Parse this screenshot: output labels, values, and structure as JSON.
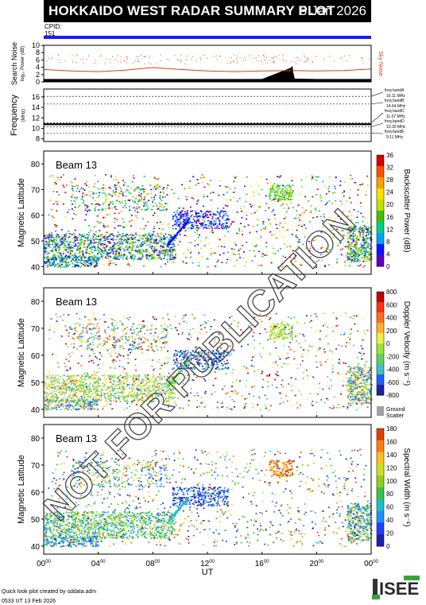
{
  "header": {
    "title": "HOKKAIDO WEST RADAR SUMMARY PLOT",
    "date": "5 Jan 2026"
  },
  "cpid": {
    "label": "CPID:",
    "value": "151"
  },
  "footer": {
    "line1": "Quick look plot created by sddata.adm",
    "line2": "0533 UT 13 Feb 2026"
  },
  "logo": {
    "text": "ISEE"
  },
  "watermark": "NOT FOR PUBLICATION",
  "colors": {
    "cpid_bar": "#1a1aff",
    "sky_noise": "#e04010",
    "search_noise": "#000000"
  },
  "chart_data": [
    {
      "type": "line",
      "panel": "noise",
      "ylabel": "Search Noise",
      "ylabel_sub": "log₁₀ Power (dB)",
      "right_label": "Sky Noise",
      "ylim": [
        0,
        10
      ],
      "yticks": [
        0,
        2,
        4,
        6,
        8,
        10
      ],
      "series": [
        {
          "name": "Sky Noise",
          "color": "#e04010",
          "x": [
            0,
            2,
            4,
            6,
            8,
            10,
            12,
            14,
            16,
            18,
            20,
            22,
            24
          ],
          "values": [
            3.4,
            3.0,
            2.8,
            3.2,
            3.9,
            3.4,
            3.0,
            2.8,
            3.0,
            3.1,
            3.0,
            3.1,
            3.5
          ]
        },
        {
          "name": "Search Noise",
          "color": "#000000",
          "x": [
            0,
            4,
            8,
            12,
            16,
            18.2,
            18.4,
            20,
            24
          ],
          "values": [
            0.8,
            0.8,
            0.8,
            0.8,
            0.8,
            4.0,
            0.9,
            0.8,
            0.8
          ]
        }
      ]
    },
    {
      "type": "line",
      "panel": "frequency",
      "ylabel": "Frequency",
      "ylabel_sub": "(MHz)",
      "ylim": [
        7.5,
        17.5
      ],
      "yticks": [
        8,
        10,
        12,
        14,
        16
      ],
      "bands": [
        {
          "label": "freq bandA",
          "freq": "16.11 MHz",
          "value": 16.11
        },
        {
          "label": "freq bandB",
          "freq": "14.64 MHz",
          "value": 14.64
        },
        {
          "label": "freq bandC",
          "freq": "11.07 MHz",
          "value": 11.07
        },
        {
          "label": "freq bandD",
          "freq": "10.30 MHz",
          "value": 10.3
        },
        {
          "label": "freq bandE",
          "freq": "9.11 MHz",
          "value": 9.11
        }
      ],
      "series": [
        {
          "values": [
            10.8,
            10.8
          ]
        }
      ]
    },
    {
      "type": "heatmap",
      "panel": "power",
      "beam_label": "Beam 13",
      "ylabel": "Magnetic Latitude",
      "ylim": [
        37,
        85
      ],
      "yticks": [
        40,
        50,
        60,
        70,
        80
      ],
      "colorbar": {
        "label": "Backscatter Power (dB)",
        "ticks": [
          0,
          4,
          8,
          12,
          16,
          20,
          24,
          28,
          32,
          36
        ],
        "range": [
          0,
          36
        ]
      }
    },
    {
      "type": "heatmap",
      "panel": "velocity",
      "beam_label": "Beam 13",
      "ylabel": "Magnetic Latitude",
      "ylim": [
        37,
        85
      ],
      "yticks": [
        40,
        50,
        60,
        70,
        80
      ],
      "colorbar": {
        "label": "Doppler Velocity (m s⁻¹)",
        "ticks": [
          800,
          600,
          400,
          200,
          0,
          -200,
          -400,
          -600,
          -800
        ],
        "range": [
          -800,
          800
        ]
      },
      "ground_scatter_label": [
        "Ground",
        "Scatter"
      ]
    },
    {
      "type": "heatmap",
      "panel": "width",
      "beam_label": "Beam 13",
      "ylabel": "Magnetic Latitude",
      "ylim": [
        37,
        85
      ],
      "yticks": [
        40,
        50,
        60,
        70,
        80
      ],
      "colorbar": {
        "label": "Spectral Width (m s⁻¹)",
        "ticks": [
          0,
          20,
          40,
          60,
          80,
          100,
          120,
          140,
          160,
          180
        ],
        "range": [
          0,
          180
        ]
      }
    }
  ],
  "xaxis": {
    "label": "UT",
    "ticks": [
      {
        "h": "00",
        "m": "00"
      },
      {
        "h": "04",
        "m": "00"
      },
      {
        "h": "08",
        "m": "00"
      },
      {
        "h": "12",
        "m": "00"
      },
      {
        "h": "16",
        "m": "00"
      },
      {
        "h": "20",
        "m": "00"
      },
      {
        "h": "00",
        "m": "00"
      }
    ]
  }
}
